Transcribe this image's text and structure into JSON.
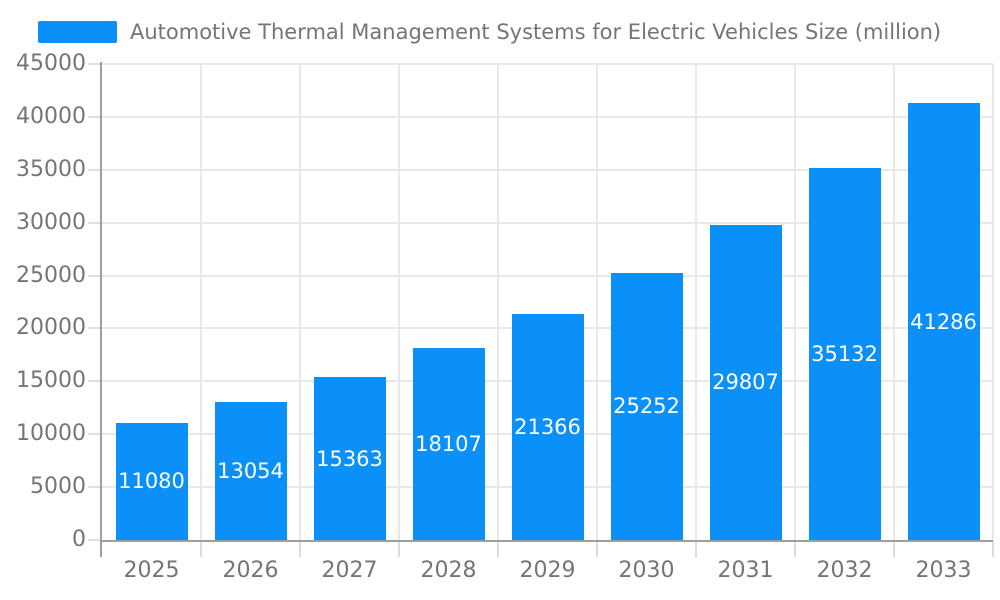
{
  "chart_data": {
    "type": "bar",
    "title": "Automotive Thermal Management Systems for Electric Vehicles Size (million)",
    "categories": [
      "2025",
      "2026",
      "2027",
      "2028",
      "2029",
      "2030",
      "2031",
      "2032",
      "2033"
    ],
    "values": [
      11080,
      13054,
      15363,
      18107,
      21366,
      25252,
      29807,
      35132,
      41286
    ],
    "xlabel": "",
    "ylabel": "",
    "ylim": [
      0,
      45000
    ],
    "yticks": [
      0,
      5000,
      10000,
      15000,
      20000,
      25000,
      30000,
      35000,
      40000,
      45000
    ],
    "grid": true,
    "legend_position": "top-left",
    "value_labels": "inside-center-white"
  },
  "legend": {
    "label": "Automotive Thermal Management Systems for Electric Vehicles Size (million)"
  },
  "colors": {
    "bar": "#0a90f8",
    "gridline": "#e8e8e8",
    "axis": "#9e9e9e",
    "y_tick": "#e0e0e0",
    "x_tick": "#dcdcdc",
    "label_text": "#757575",
    "value_label_text": "#ffffff",
    "background": "#ffffff"
  }
}
